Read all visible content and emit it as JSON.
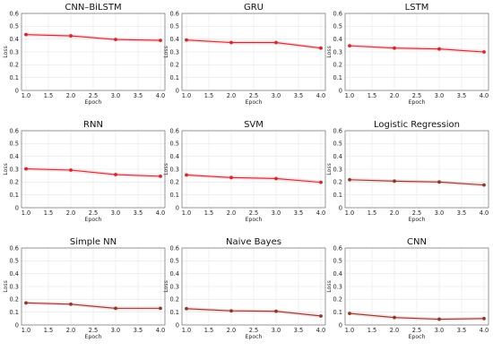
{
  "chart_data": [
    {
      "type": "line",
      "title": "CNN–BiLSTM",
      "xlabel": "Epoch",
      "ylabel": "Loss",
      "x": [
        1.0,
        2.0,
        3.0,
        4.0
      ],
      "xlim": [
        0.9,
        4.1
      ],
      "ylim": [
        0,
        0.6
      ],
      "xticks": [
        "1.0",
        "1.5",
        "2.0",
        "2.5",
        "3.0",
        "3.5",
        "4.0"
      ],
      "yticks": [
        "0",
        "0.1",
        "0.2",
        "0.3",
        "0.4",
        "0.5",
        "0.6"
      ],
      "series": [
        {
          "values": [
            0.435,
            0.425,
            0.397,
            0.39
          ],
          "color": "#d6262b",
          "band": "#f4c9cf"
        }
      ],
      "grid": true
    },
    {
      "type": "line",
      "title": "GRU",
      "xlabel": "Epoch",
      "ylabel": "Loss",
      "x": [
        1.0,
        2.0,
        3.0,
        4.0
      ],
      "xlim": [
        0.9,
        4.1
      ],
      "ylim": [
        0,
        0.6
      ],
      "xticks": [
        "1.0",
        "1.5",
        "2.0",
        "2.5",
        "3.0",
        "3.5",
        "4.0"
      ],
      "yticks": [
        "0",
        "0.1",
        "0.2",
        "0.3",
        "0.4",
        "0.5",
        "0.6"
      ],
      "series": [
        {
          "values": [
            0.393,
            0.373,
            0.373,
            0.33
          ],
          "color": "#d6262b",
          "band": "#f4c9cf"
        }
      ],
      "grid": true
    },
    {
      "type": "line",
      "title": "LSTM",
      "xlabel": "Epoch",
      "ylabel": "Loss",
      "x": [
        1.0,
        2.0,
        3.0,
        4.0
      ],
      "xlim": [
        0.9,
        4.1
      ],
      "ylim": [
        0,
        0.6
      ],
      "xticks": [
        "1.0",
        "1.5",
        "2.0",
        "2.5",
        "3.0",
        "3.5",
        "4.0"
      ],
      "yticks": [
        "0",
        "0.1",
        "0.2",
        "0.3",
        "0.4",
        "0.5",
        "0.6"
      ],
      "series": [
        {
          "values": [
            0.348,
            0.33,
            0.323,
            0.3
          ],
          "color": "#d6262b",
          "band": "#f4c9cf"
        }
      ],
      "grid": true
    },
    {
      "type": "line",
      "title": "RNN",
      "xlabel": "Epoch",
      "ylabel": "Loss",
      "x": [
        1.0,
        2.0,
        3.0,
        4.0
      ],
      "xlim": [
        0.9,
        4.1
      ],
      "ylim": [
        0,
        0.6
      ],
      "xticks": [
        "1.0",
        "1.5",
        "2.0",
        "2.5",
        "3.0",
        "3.5",
        "4.0"
      ],
      "yticks": [
        "0",
        "0.1",
        "0.2",
        "0.3",
        "0.4",
        "0.5",
        "0.6"
      ],
      "series": [
        {
          "values": [
            0.303,
            0.293,
            0.258,
            0.245
          ],
          "color": "#d6262b",
          "band": "#f4c9cf"
        }
      ],
      "grid": true
    },
    {
      "type": "line",
      "title": "SVM",
      "xlabel": "Epoch",
      "ylabel": "Loss",
      "x": [
        1.0,
        2.0,
        3.0,
        4.0
      ],
      "xlim": [
        0.9,
        4.1
      ],
      "ylim": [
        0,
        0.6
      ],
      "xticks": [
        "1.0",
        "1.5",
        "2.0",
        "2.5",
        "3.0",
        "3.5",
        "4.0"
      ],
      "yticks": [
        "0",
        "0.1",
        "0.2",
        "0.3",
        "0.4",
        "0.5",
        "0.6"
      ],
      "series": [
        {
          "values": [
            0.255,
            0.235,
            0.227,
            0.198
          ],
          "color": "#d6262b",
          "band": "#f4c9cf"
        }
      ],
      "grid": true
    },
    {
      "type": "line",
      "title": "Logistic Regression",
      "xlabel": "Epoch",
      "ylabel": "Loss",
      "x": [
        1.0,
        2.0,
        3.0,
        4.0
      ],
      "xlim": [
        0.9,
        4.1
      ],
      "ylim": [
        0,
        0.6
      ],
      "xticks": [
        "1.0",
        "1.5",
        "2.0",
        "2.5",
        "3.0",
        "3.5",
        "4.0"
      ],
      "yticks": [
        "0",
        "0.1",
        "0.2",
        "0.3",
        "0.4",
        "0.5",
        "0.6"
      ],
      "series": [
        {
          "values": [
            0.218,
            0.207,
            0.2,
            0.177
          ],
          "color": "#8b3a2a",
          "band": "#f4c9cf"
        }
      ],
      "grid": true
    },
    {
      "type": "line",
      "title": "Simple NN",
      "xlabel": "Epoch",
      "ylabel": "Loss",
      "x": [
        1.0,
        2.0,
        3.0,
        4.0
      ],
      "xlim": [
        0.9,
        4.1
      ],
      "ylim": [
        0,
        0.6
      ],
      "xticks": [
        "1.0",
        "1.5",
        "2.0",
        "2.5",
        "3.0",
        "3.5",
        "4.0"
      ],
      "yticks": [
        "0",
        "0.1",
        "0.2",
        "0.3",
        "0.4",
        "0.5",
        "0.6"
      ],
      "series": [
        {
          "values": [
            0.172,
            0.162,
            0.13,
            0.13
          ],
          "color": "#8b3a2a",
          "band": "#f4c9cf"
        }
      ],
      "grid": true
    },
    {
      "type": "line",
      "title": "Naive Bayes",
      "xlabel": "Epoch",
      "ylabel": "Loss",
      "x": [
        1.0,
        2.0,
        3.0,
        4.0
      ],
      "xlim": [
        0.9,
        4.1
      ],
      "ylim": [
        0,
        0.6
      ],
      "xticks": [
        "1.0",
        "1.5",
        "2.0",
        "2.5",
        "3.0",
        "3.5",
        "4.0"
      ],
      "yticks": [
        "0",
        "0.1",
        "0.2",
        "0.3",
        "0.4",
        "0.5",
        "0.6"
      ],
      "series": [
        {
          "values": [
            0.127,
            0.11,
            0.107,
            0.07
          ],
          "color": "#8b3a2a",
          "band": "#f4c9cf"
        }
      ],
      "grid": true
    },
    {
      "type": "line",
      "title": "CNN",
      "xlabel": "Epoch",
      "ylabel": "Loss",
      "x": [
        1.0,
        2.0,
        3.0,
        4.0
      ],
      "xlim": [
        0.9,
        4.1
      ],
      "ylim": [
        0,
        0.6
      ],
      "xticks": [
        "1.0",
        "1.5",
        "2.0",
        "2.5",
        "3.0",
        "3.5",
        "4.0"
      ],
      "yticks": [
        "0",
        "0.1",
        "0.2",
        "0.3",
        "0.4",
        "0.5",
        "0.6"
      ],
      "series": [
        {
          "values": [
            0.09,
            0.058,
            0.045,
            0.05
          ],
          "color": "#8b3a2a",
          "band": "#f4c9cf"
        }
      ],
      "grid": true
    }
  ]
}
